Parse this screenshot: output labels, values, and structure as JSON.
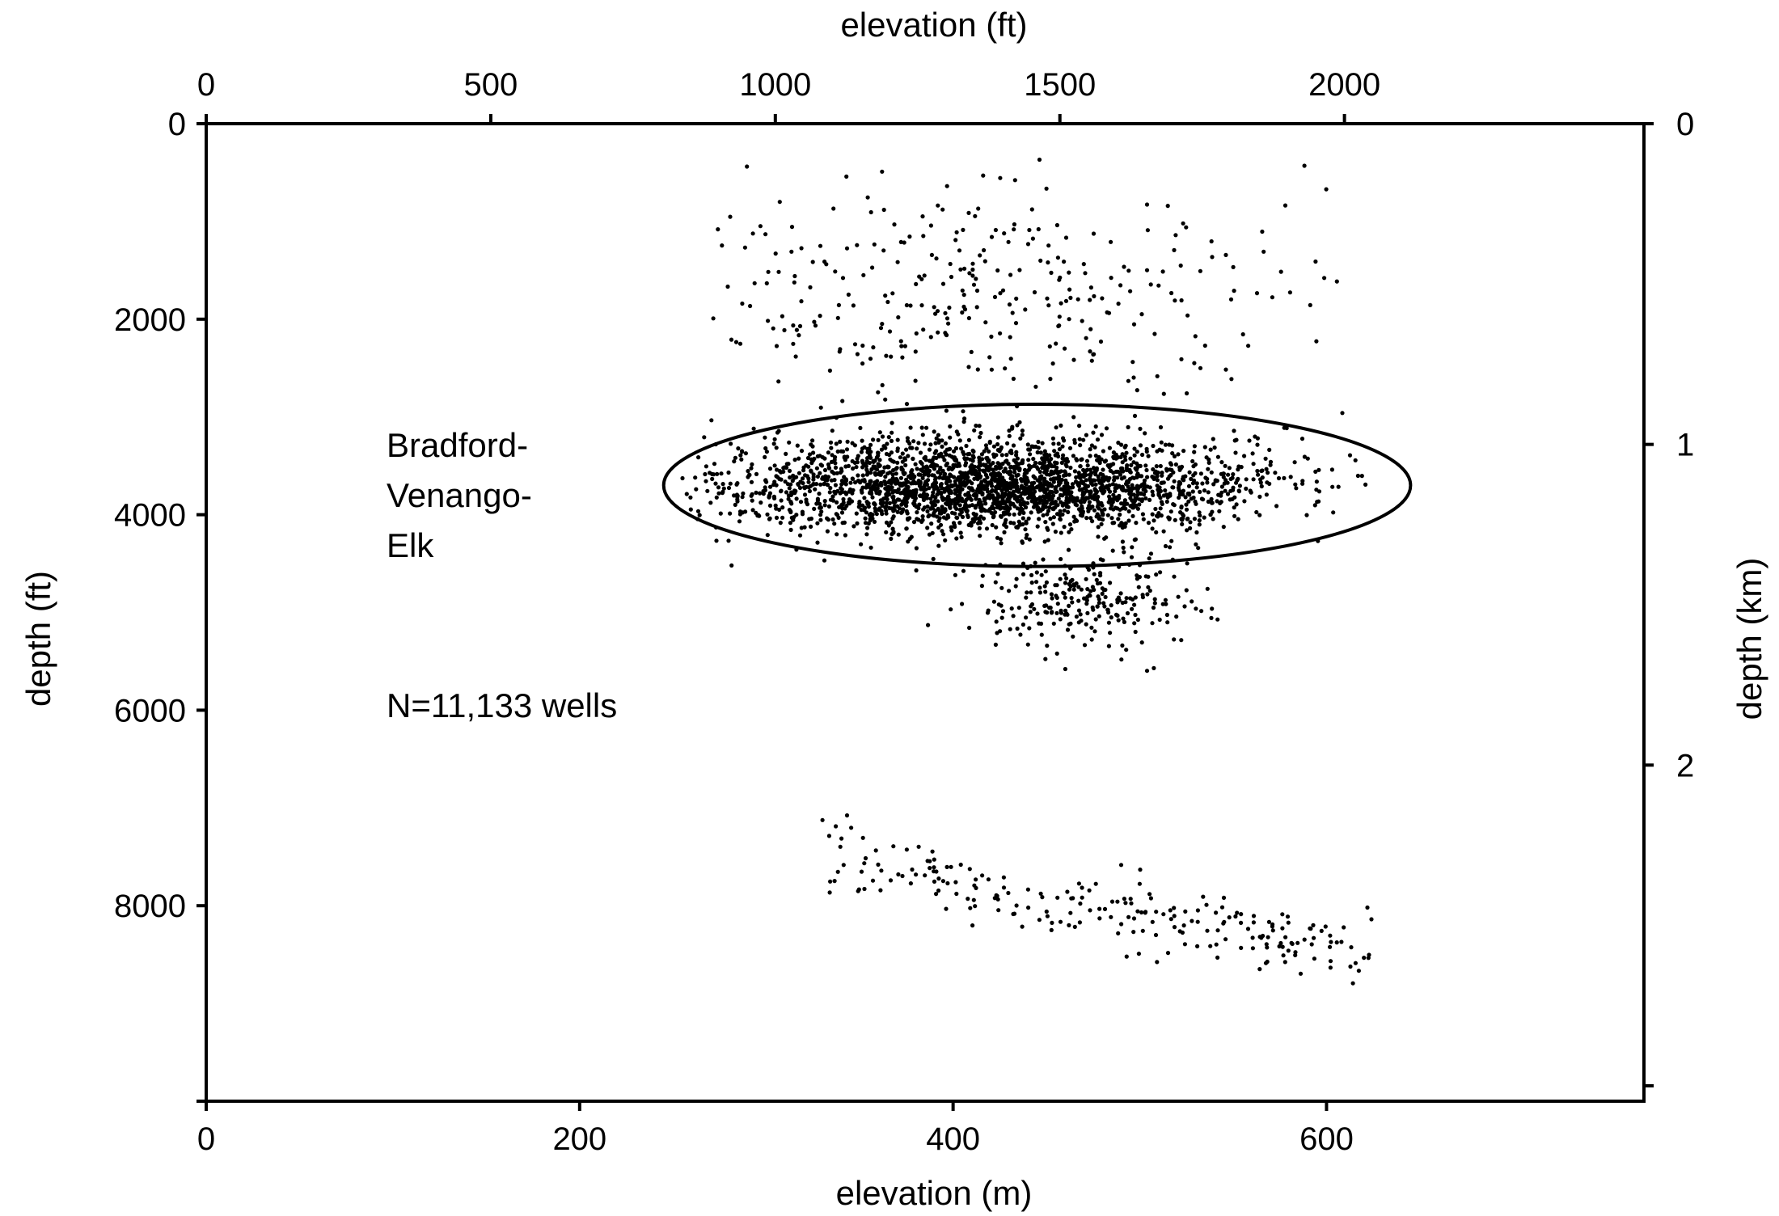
{
  "chart_data": {
    "type": "scatter",
    "title": "",
    "xlabel_bottom": "elevation (m)",
    "xlabel_top": "elevation (ft)",
    "ylabel_left": "depth (ft)",
    "ylabel_right": "depth (km)",
    "x_bottom_range": [
      0,
      770
    ],
    "x_bottom_ticks": [
      0,
      200,
      400,
      600
    ],
    "x_top_ticks": [
      0,
      500,
      1000,
      1500,
      2000
    ],
    "y_left_range": [
      0,
      10000
    ],
    "y_left_ticks": [
      0,
      2000,
      4000,
      6000,
      8000
    ],
    "y_right_ticks": [
      0,
      1,
      2,
      3
    ],
    "y_right_tick_labels": [
      "0",
      "1",
      "2",
      ""
    ],
    "grid": false,
    "y_inverted": true,
    "clusters": [
      {
        "name_hint": "dense main band",
        "x_mean": 420,
        "x_sd": 70,
        "x_range": [
          255,
          625
        ],
        "y_mean": 3700,
        "y_sd": 230,
        "count": 2600
      },
      {
        "name_hint": "below main band",
        "x_mean": 470,
        "x_sd": 30,
        "x_range": [
          340,
          580
        ],
        "y_mean": 4900,
        "y_sd": 250,
        "count": 260
      },
      {
        "name_hint": "shallow scatter",
        "x_mean": 420,
        "x_sd": 80,
        "x_range": [
          270,
          610
        ],
        "y_mean": 1700,
        "y_sd": 600,
        "count": 320
      },
      {
        "name_hint": "deep trend",
        "x_start": 330,
        "x_end": 625,
        "y_start": 7550,
        "y_end": 8450,
        "y_sd": 170,
        "count": 230
      }
    ],
    "outline_ellipse": {
      "cx": 445,
      "cy": 3700,
      "rx": 200,
      "ry": 830
    },
    "annotations": {
      "group_name_lines": [
        "Bradford-",
        "Venango-",
        "Elk"
      ],
      "count_label": "N=11,133 wells"
    },
    "point_color": "#000000"
  }
}
